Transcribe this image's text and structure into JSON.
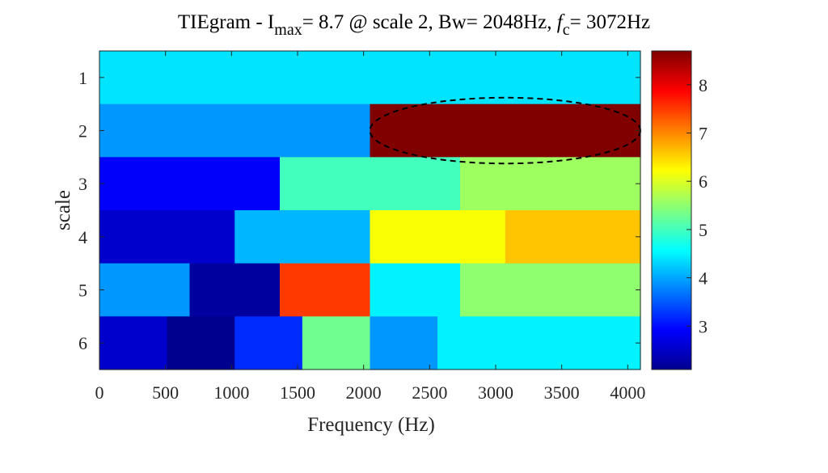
{
  "chart_data": {
    "type": "heatmap",
    "title": {
      "prefix": "TIEgram - I",
      "max_sub": "max",
      "middle": "= 8.7 @ scale 2, Bw= 2048Hz, ",
      "fc_italic": "f",
      "fc_sub": "c",
      "suffix": "= 3072Hz"
    },
    "xlabel": "Frequency (Hz)",
    "ylabel": "scale",
    "xlim": [
      0,
      4096
    ],
    "x_ticks": [
      0,
      500,
      1000,
      1500,
      2000,
      2500,
      3000,
      3500,
      4000
    ],
    "x_tick_labels": [
      "0",
      "500",
      "1000",
      "1500",
      "2000",
      "2500",
      "3000",
      "3500",
      "4000"
    ],
    "y_tick_labels": [
      "1",
      "2",
      "3",
      "4",
      "5",
      "6"
    ],
    "colormap": "jet",
    "clim": [
      2.1,
      8.7
    ],
    "colorbar_ticks": [
      3,
      4,
      5,
      6,
      7,
      8
    ],
    "colorbar_tick_labels": [
      "3",
      "4",
      "5",
      "6",
      "7",
      "8"
    ],
    "rows": [
      {
        "scale": 1,
        "values": [
          4.4
        ]
      },
      {
        "scale": 2,
        "values": [
          3.9,
          8.7
        ]
      },
      {
        "scale": 3,
        "values": [
          2.9,
          5.0,
          5.6
        ]
      },
      {
        "scale": 4,
        "values": [
          2.6,
          4.1,
          6.2,
          6.6
        ]
      },
      {
        "scale": 5,
        "values": [
          3.9,
          2.3,
          7.5,
          4.5,
          5.5,
          5.5
        ]
      },
      {
        "scale": 6,
        "values": [
          2.6,
          2.2,
          3.2,
          5.3,
          3.9,
          4.5,
          4.5,
          4.5
        ]
      }
    ],
    "highlight": {
      "scale": 2,
      "x_range": [
        2048,
        4096
      ],
      "style": "dashed-ellipse"
    }
  }
}
